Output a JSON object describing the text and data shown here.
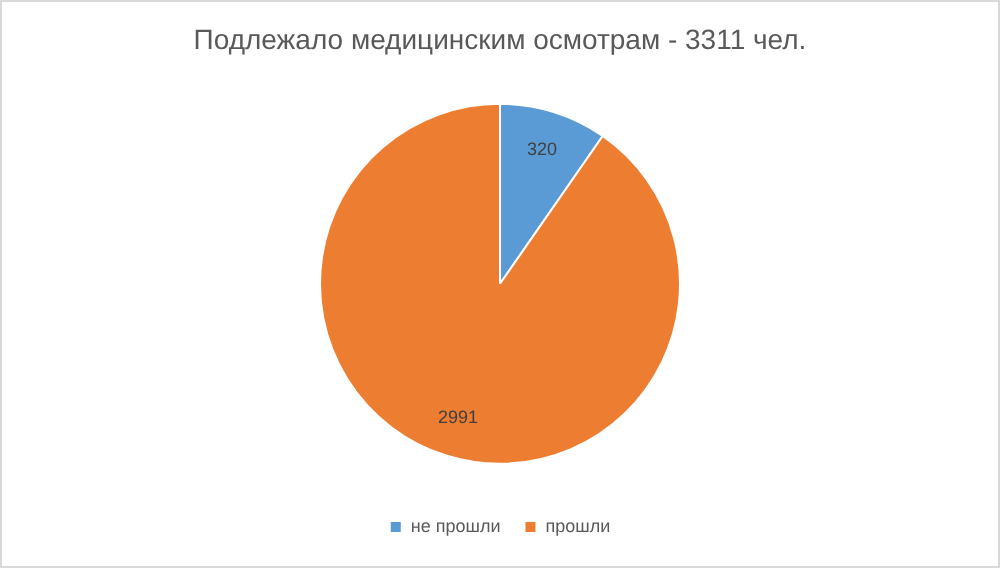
{
  "chart_data": {
    "type": "pie",
    "title": "Подлежало медицинским осмотрам - 3311 чел.",
    "categories": [
      "не прошли",
      "прошли"
    ],
    "values": [
      320,
      2991
    ],
    "colors": [
      "#5b9bd5",
      "#ed7d31"
    ],
    "data_labels": true,
    "legend": "bottom"
  }
}
